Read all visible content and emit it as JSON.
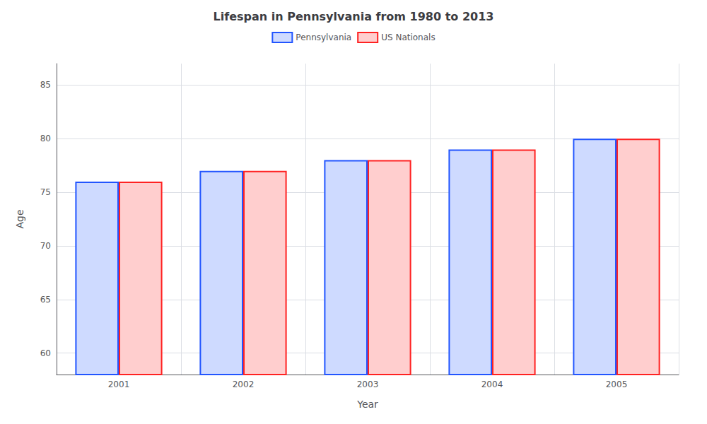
{
  "chart_data": {
    "type": "bar",
    "title": "Lifespan in Pennsylvania from 1980 to 2013",
    "x_label": "Year",
    "y_label": "Age",
    "categories": [
      "2001",
      "2002",
      "2003",
      "2004",
      "2005"
    ],
    "series": [
      {
        "name": "Pennsylvania",
        "color": "#2255ff",
        "values": [
          76,
          77,
          78,
          79,
          80
        ]
      },
      {
        "name": "US Nationals",
        "color": "#ff2222",
        "values": [
          76,
          77,
          78,
          79,
          80
        ]
      }
    ],
    "ylim": [
      58,
      87
    ],
    "yticks": [
      60,
      65,
      70,
      75,
      80,
      85
    ],
    "grid": true,
    "legend": "top"
  }
}
